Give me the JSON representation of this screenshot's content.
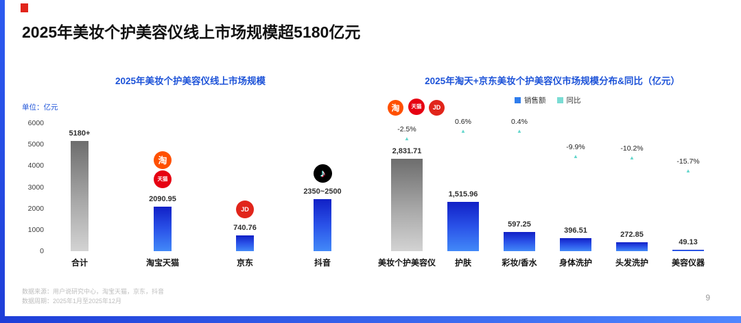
{
  "slide": {
    "title": "2025年美妆个护美容仪线上市场规模超5180亿元",
    "page_number": "9",
    "footnote_line1": "数据来源：用户说研究中心，淘宝天猫，京东，抖音",
    "footnote_line2": "数据周期：2025年1月至2025年12月"
  },
  "icons": {
    "taobao": {
      "glyph": "淘"
    },
    "tmall": {
      "glyph": "天猫"
    },
    "jd": {
      "glyph": "JD"
    },
    "douyin": {
      "glyph": "♪"
    }
  },
  "colors": {
    "accent_blue": "#1d53d8",
    "bar_blue_top": "#1120c6",
    "bar_blue_bottom": "#4289f8",
    "bar_gray_top": "#6d6d6d",
    "bar_gray_bottom": "#d3d3d3",
    "yoy_teal": "#63d6cc"
  },
  "chart_data": [
    {
      "type": "bar",
      "title": "2025年美妆个护美容仪线上市场规模",
      "unit_label": "单位：亿元",
      "ylim": [
        0,
        6000
      ],
      "yticks": [
        6000,
        5000,
        4000,
        3000,
        2000,
        1000,
        0
      ],
      "grid": false,
      "categories": [
        "合计",
        "淘宝天猫",
        "京东",
        "抖音"
      ],
      "values": [
        5180,
        2090.95,
        740.76,
        2425
      ],
      "value_labels": [
        "5180+",
        "2090.95",
        "740.76",
        "2350~2500"
      ],
      "bar_styles": [
        "gray",
        "blue",
        "blue",
        "blue"
      ]
    },
    {
      "type": "bar",
      "title": "2025年淘天+京东美妆个护美容仪市场规模分布&同比（亿元）",
      "legend": [
        {
          "label": "销售额",
          "style": "blue"
        },
        {
          "label": "同比",
          "style": "teal"
        }
      ],
      "legend_position": "top",
      "ylim": [
        0,
        3000
      ],
      "grid": false,
      "categories": [
        "美妆个护美容仪",
        "护肤",
        "彩妆/香水",
        "身体洗护",
        "头发洗护",
        "美容仪器"
      ],
      "values": [
        2831.71,
        1515.96,
        597.25,
        396.51,
        272.85,
        49.13
      ],
      "value_labels": [
        "2,831.71",
        "1,515.96",
        "597.25",
        "396.51",
        "272.85",
        "49.13"
      ],
      "yoy_values": [
        -2.5,
        0.6,
        0.4,
        -9.9,
        -10.2,
        -15.7
      ],
      "yoy_labels": [
        "-2.5%",
        "0.6%",
        "0.4%",
        "-9.9%",
        "-10.2%",
        "-15.7%"
      ],
      "bar_styles": [
        "gray",
        "blue",
        "blue",
        "blue",
        "blue",
        "blue"
      ]
    }
  ]
}
